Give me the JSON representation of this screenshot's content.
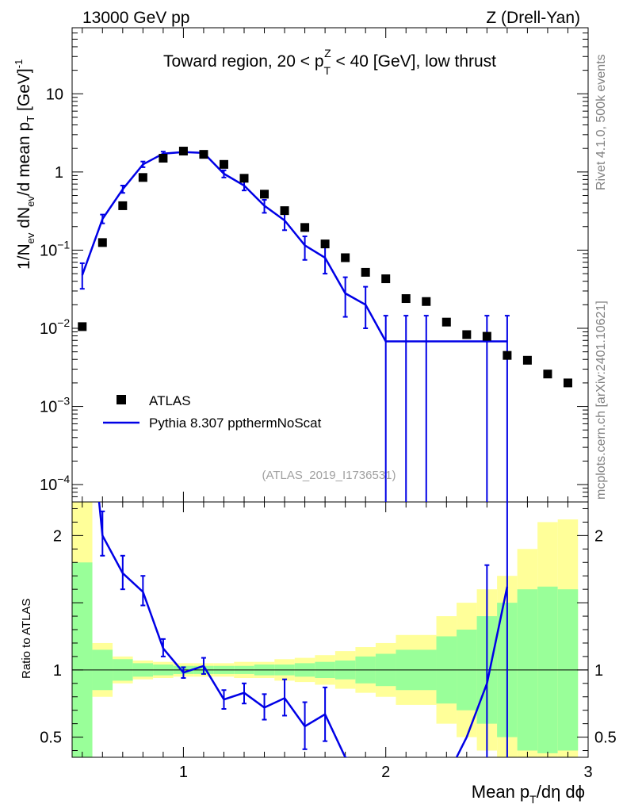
{
  "header": {
    "left": "13000 GeV pp",
    "right": "Z (Drell-Yan)"
  },
  "side_labels": {
    "rivet": "Rivet 4.1.0,  500k events",
    "mcplots": "mcplots.cern.ch [arXiv:2401.10621]"
  },
  "colors": {
    "data": "#000000",
    "mc": "#0000e6",
    "band_inner": "#99ff99",
    "band_outer": "#ffff99",
    "watermark": "#a0a0a0"
  },
  "chart_data": {
    "type": "line",
    "title_parts": {
      "prefix": "Toward region, 20 < p",
      "sup": "Z",
      "sub": "T",
      "suffix": " < 40 [GeV], low thrust"
    },
    "watermark": "(ATLAS_2019_I1736531)",
    "xlabel": {
      "main": "Mean p",
      "sub": "T",
      "rest": "/dη dϕ"
    },
    "ylabel": {
      "p1": "1/N",
      "s1": "ev",
      "p2": " dN",
      "s2": "ev",
      "p3": "/d mean p",
      "s3": "T",
      "p4": " [GeV]",
      "sup": "-1"
    },
    "ratio_ylabel": "Ratio to ATLAS",
    "xlim": [
      0.45,
      3.0
    ],
    "main_ylim": [
      6e-05,
      70
    ],
    "ratio_ylim": [
      0.35,
      2.25
    ],
    "x_major_ticks": [
      1,
      2,
      3
    ],
    "x_tick_labels": [
      "1",
      "2",
      "3"
    ],
    "main_y_ticks": [
      {
        "value": 10,
        "label": "10",
        "exp": ""
      },
      {
        "value": 1,
        "label": "1",
        "exp": ""
      },
      {
        "value": 0.1,
        "label": "10",
        "exp": "−1"
      },
      {
        "value": 0.01,
        "label": "10",
        "exp": "−2"
      },
      {
        "value": 0.001,
        "label": "10",
        "exp": "−3"
      },
      {
        "value": 0.0001,
        "label": "10",
        "exp": "−4"
      }
    ],
    "ratio_y_ticks": [
      {
        "value": 2,
        "label": "2"
      },
      {
        "value": 1,
        "label": "1"
      },
      {
        "value": 0.5,
        "label": "0.5"
      }
    ],
    "legend": {
      "position": "lower-left",
      "entries": [
        "ATLAS",
        "Pythia 8.307 ppthermNoScat"
      ]
    },
    "series": [
      {
        "name": "ATLAS",
        "kind": "points",
        "x": [
          0.5,
          0.6,
          0.7,
          0.8,
          0.9,
          1.0,
          1.1,
          1.2,
          1.3,
          1.4,
          1.5,
          1.6,
          1.7,
          1.8,
          1.9,
          2.0,
          2.1,
          2.2,
          2.3,
          2.4,
          2.5,
          2.6,
          2.7,
          2.8,
          2.9
        ],
        "y": [
          0.0105,
          0.125,
          0.37,
          0.85,
          1.5,
          1.85,
          1.68,
          1.25,
          0.83,
          0.52,
          0.32,
          0.195,
          0.12,
          0.08,
          0.052,
          0.043,
          0.024,
          0.022,
          0.012,
          0.0083,
          0.0079,
          0.0045,
          0.0039,
          0.0026,
          0.002
        ]
      },
      {
        "name": "Pythia 8.307 ppthermNoScat",
        "kind": "line",
        "x": [
          0.5,
          0.6,
          0.7,
          0.8,
          0.9,
          1.0,
          1.1,
          1.2,
          1.3,
          1.4,
          1.5,
          1.6,
          1.7,
          1.8,
          1.9,
          2.0,
          2.1,
          2.2,
          2.3,
          2.4,
          2.5,
          2.6
        ],
        "y": [
          0.048,
          0.25,
          0.6,
          1.25,
          1.72,
          1.8,
          1.75,
          0.95,
          0.67,
          0.37,
          0.24,
          0.115,
          0.08,
          0.028,
          0.02,
          0.0068,
          0.0068,
          0.0068,
          0.0068,
          0.0068,
          0.0068,
          0.0068
        ],
        "err_low": [
          0.032,
          0.22,
          0.54,
          1.15,
          1.62,
          1.72,
          1.66,
          0.85,
          0.58,
          0.3,
          0.18,
          0.075,
          0.05,
          0.014,
          0.01,
          1e-05,
          1e-05,
          1e-05,
          null,
          null,
          1e-05,
          1e-05
        ],
        "err_high": [
          0.068,
          0.285,
          0.67,
          1.36,
          1.82,
          1.88,
          1.84,
          1.05,
          0.77,
          0.44,
          0.3,
          0.15,
          0.11,
          0.045,
          0.034,
          0.0145,
          0.0145,
          0.0145,
          null,
          null,
          0.0145,
          0.0145
        ]
      }
    ],
    "ratio": {
      "x": [
        0.5,
        0.6,
        0.7,
        0.8,
        0.9,
        1.0,
        1.1,
        1.2,
        1.3,
        1.4,
        1.5,
        1.6,
        1.7,
        1.8,
        1.9,
        2.0,
        2.1,
        2.2,
        2.3,
        2.4,
        2.5,
        2.6
      ],
      "y": [
        3.5,
        2.0,
        1.72,
        1.58,
        1.16,
        0.98,
        1.03,
        0.78,
        0.83,
        0.72,
        0.79,
        0.58,
        0.67,
        0.35,
        0.3,
        0.2,
        0.2,
        0.2,
        0.2,
        0.5,
        0.9,
        1.62
      ],
      "err_low": [
        null,
        1.85,
        1.6,
        1.48,
        1.1,
        0.94,
        0.97,
        0.71,
        0.75,
        0.63,
        0.66,
        0.41,
        0.47,
        null,
        null,
        null,
        null,
        null,
        null,
        null,
        0.0,
        0.0
      ],
      "err_high": [
        null,
        2.18,
        1.85,
        1.7,
        1.23,
        1.02,
        1.09,
        0.85,
        0.9,
        0.82,
        0.93,
        0.76,
        0.87,
        null,
        null,
        null,
        null,
        null,
        null,
        null,
        1.78,
        3.5
      ],
      "band_edges": [
        0.45,
        0.55,
        0.65,
        0.75,
        0.85,
        0.95,
        1.05,
        1.15,
        1.25,
        1.35,
        1.45,
        1.55,
        1.65,
        1.75,
        1.85,
        1.95,
        2.05,
        2.15,
        2.25,
        2.35,
        2.45,
        2.55,
        2.65,
        2.75,
        2.85,
        2.95
      ],
      "inner_low": [
        0.2,
        0.85,
        0.92,
        0.95,
        0.96,
        0.97,
        0.97,
        0.97,
        0.97,
        0.96,
        0.96,
        0.95,
        0.94,
        0.93,
        0.9,
        0.88,
        0.85,
        0.85,
        0.75,
        0.7,
        0.6,
        0.5,
        0.4,
        0.38,
        0.4
      ],
      "inner_high": [
        1.8,
        1.15,
        1.08,
        1.05,
        1.04,
        1.03,
        1.03,
        1.03,
        1.03,
        1.04,
        1.04,
        1.05,
        1.06,
        1.07,
        1.1,
        1.12,
        1.15,
        1.15,
        1.25,
        1.3,
        1.4,
        1.5,
        1.6,
        1.62,
        1.6
      ],
      "outer_low": [
        0.2,
        0.8,
        0.9,
        0.93,
        0.94,
        0.95,
        0.95,
        0.95,
        0.94,
        0.94,
        0.92,
        0.91,
        0.89,
        0.86,
        0.83,
        0.8,
        0.74,
        0.74,
        0.6,
        0.5,
        0.4,
        0.35,
        0.35,
        0.35,
        0.35
      ],
      "outer_high": [
        2.25,
        1.2,
        1.1,
        1.07,
        1.06,
        1.05,
        1.05,
        1.05,
        1.06,
        1.06,
        1.08,
        1.09,
        1.11,
        1.14,
        1.17,
        1.2,
        1.26,
        1.26,
        1.4,
        1.5,
        1.6,
        1.7,
        1.9,
        2.1,
        2.12
      ]
    }
  }
}
